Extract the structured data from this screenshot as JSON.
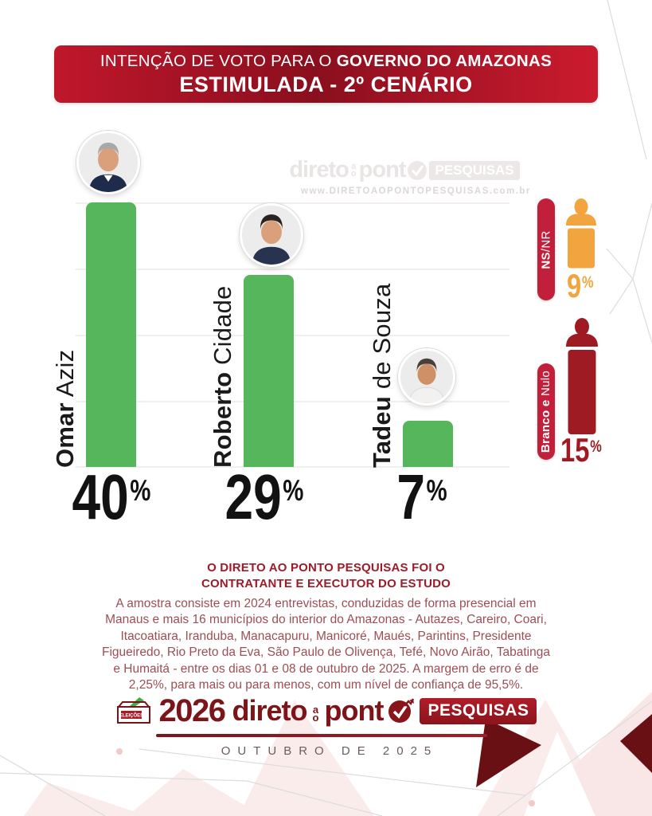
{
  "header": {
    "title_regular": "INTENÇÃO DE VOTO PARA O ",
    "title_bold": "GOVERNO DO AMAZONAS",
    "subtitle": "ESTIMULADA - 2º CENÁRIO"
  },
  "watermark": {
    "brand_left": "direto",
    "ao_top": "a",
    "ao_bottom": "o",
    "brand_right": "pont",
    "badge": "PESQUISAS",
    "url": "www.DIRETOAOPONTOPESQUISAS.com.br"
  },
  "chart_data": {
    "type": "bar",
    "title": "INTENÇÃO DE VOTO PARA O GOVERNO DO AMAZONAS - ESTIMULADA - 2º CENÁRIO",
    "categories": [
      "Omar Aziz",
      "Roberto Cidade",
      "Tadeu de Souza"
    ],
    "values": [
      40,
      29,
      7
    ],
    "unit": "%",
    "ylim": [
      0,
      40
    ],
    "gridline_step": 10,
    "grid": true,
    "bar_color": "#56b65c",
    "percent_sign": "%",
    "candidates": [
      {
        "first": "Omar",
        "last": " Aziz",
        "value": 40
      },
      {
        "first": "Roberto",
        "last": " Cidade",
        "value": 29
      },
      {
        "first": "Tadeu",
        "last": " de Souza",
        "value": 7
      }
    ],
    "aux_bars": [
      {
        "label_bold": "NS",
        "label_rest": "/NR",
        "value": 9,
        "color": "#f2a53f"
      },
      {
        "label_bold": "Branco e",
        "label_rest": " Nulo",
        "value": 15,
        "color": "#9e1b23"
      }
    ]
  },
  "note": {
    "heading_line1": "O DIRETO AO PONTO PESQUISAS FOI O",
    "heading_line2": "CONTRATANTE E EXECUTOR DO ESTUDO",
    "body": "A amostra consiste em 2024 entrevistas, conduzidas de forma presencial em Manaus e mais 16 municípios do interior do Amazonas - Autazes, Careiro, Coari, Itacoatiara, Iranduba, Manacapuru, Manicoré, Maués, Parintins, Presidente Figueiredo, Rio Preto da Eva, São Paulo de Olivença, Tefé, Novo Airão, Tabatinga e Humaitá - entre os dias 01 e 08 de outubro de 2025. A margem de erro é de 2,25%, para mais ou para menos, com um nível de confiança de 95,5%."
  },
  "footer": {
    "eleicoes": "ELEIÇÕES",
    "year": "2026",
    "brand_left": "direto",
    "ao_top": "a",
    "ao_bottom": "o",
    "brand_right": "pont",
    "badge": "PESQUISAS",
    "date": "OUTUBRO DE 2025"
  },
  "colors": {
    "banner_red": "#c0172b",
    "banner_dark": "#8a0f1e",
    "bar_green": "#56b65c",
    "pill_crimson": "#c2203a",
    "ns_nr_orange": "#f2a53f",
    "branco_nulo_red": "#9e1b23",
    "maroon_brand": "#7c1519",
    "note_heading": "#9e1b29",
    "note_body": "#9d4e54"
  }
}
